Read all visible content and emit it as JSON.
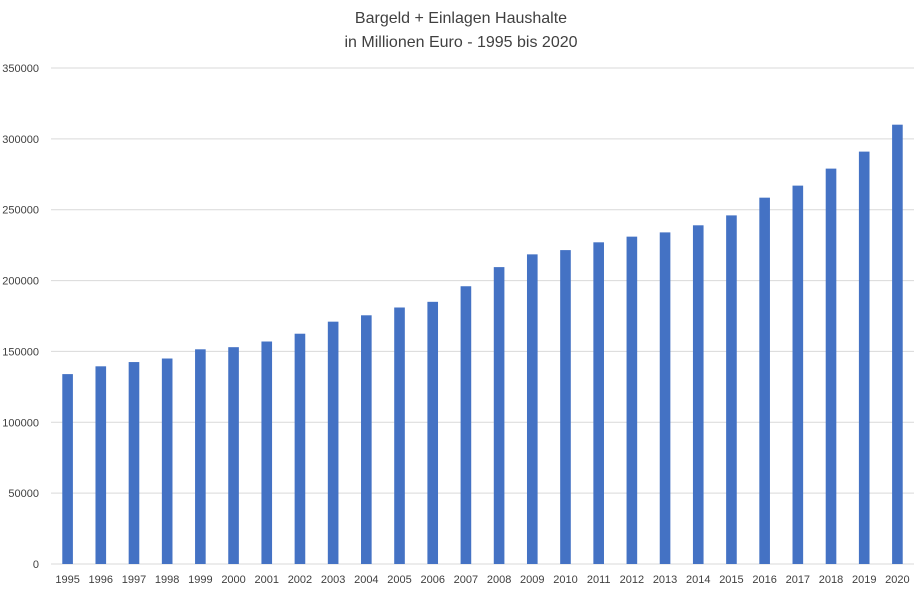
{
  "chart_data": {
    "type": "bar",
    "title": "Bargeld + Einlagen Haushalte",
    "subtitle": "in Millionen Euro - 1995 bis 2020",
    "xlabel": "",
    "ylabel": "",
    "ylim": [
      0,
      350000
    ],
    "yticks": [
      0,
      50000,
      100000,
      150000,
      200000,
      250000,
      300000,
      350000
    ],
    "grid": true,
    "legend": "none",
    "bar_color": "#4472c4",
    "categories": [
      "1995",
      "1996",
      "1997",
      "1998",
      "1999",
      "2000",
      "2001",
      "2002",
      "2003",
      "2004",
      "2005",
      "2006",
      "2007",
      "2008",
      "2009",
      "2010",
      "2011",
      "2012",
      "2013",
      "2014",
      "2015",
      "2016",
      "2017",
      "2018",
      "2019",
      "2020"
    ],
    "values": [
      134000,
      139500,
      142500,
      145000,
      151500,
      153000,
      157000,
      162500,
      171000,
      175500,
      181000,
      185000,
      196000,
      209500,
      218500,
      221500,
      227000,
      231000,
      234000,
      239000,
      246000,
      258500,
      267000,
      279000,
      291000,
      310000
    ]
  }
}
